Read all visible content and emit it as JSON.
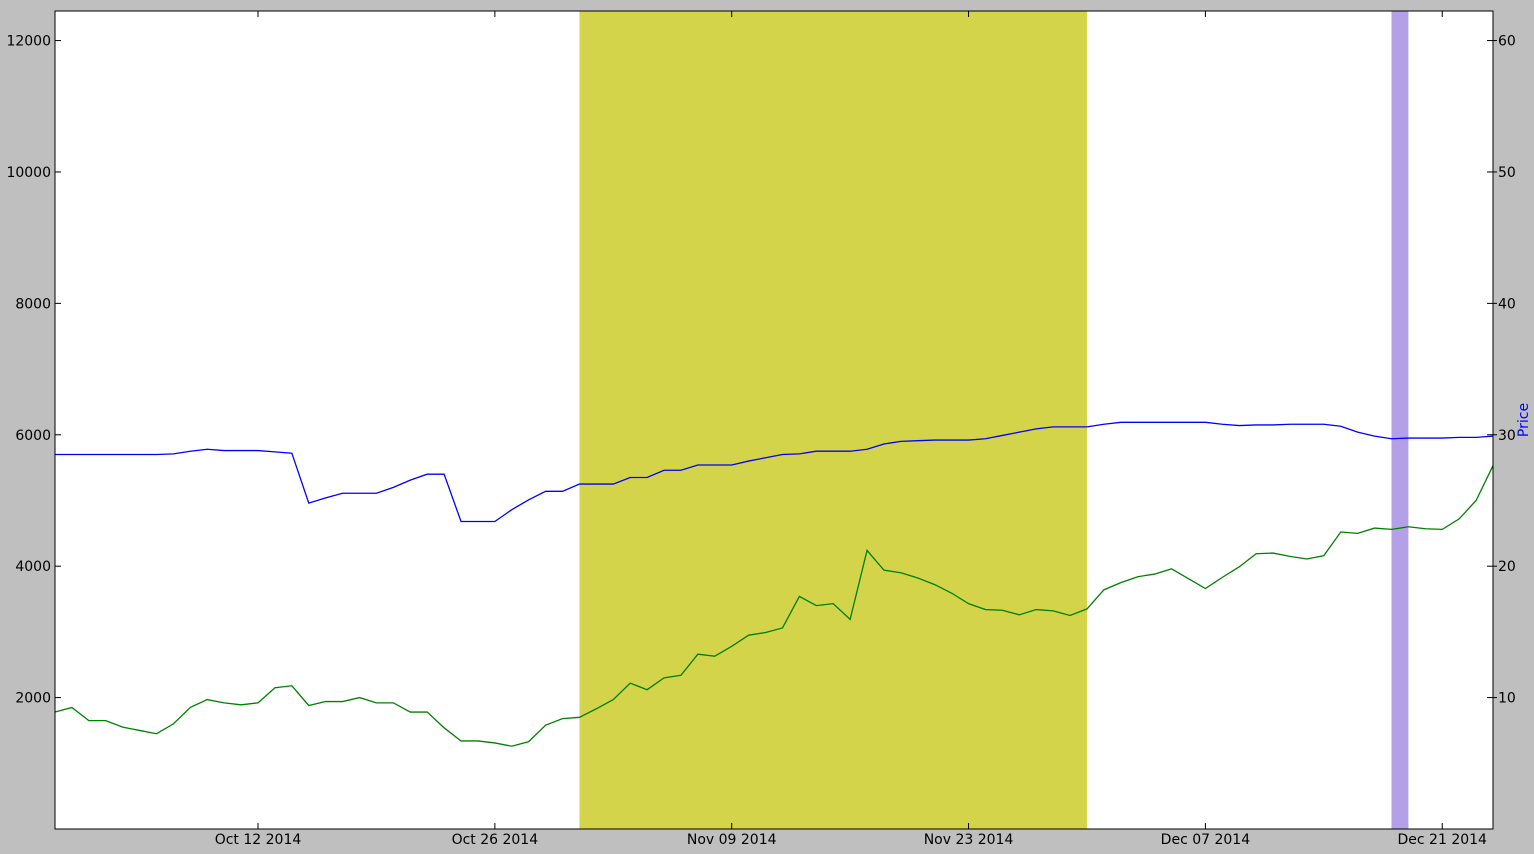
{
  "chart_data": {
    "type": "line",
    "title": "",
    "xlabel": "",
    "x_range": [
      "2014-09-30",
      "2014-12-24"
    ],
    "x_ticks": [
      {
        "date": "2014-10-12",
        "label": "Oct 12 2014"
      },
      {
        "date": "2014-10-26",
        "label": "Oct 26 2014"
      },
      {
        "date": "2014-11-09",
        "label": "Nov 09 2014"
      },
      {
        "date": "2014-11-23",
        "label": "Nov 23 2014"
      },
      {
        "date": "2014-12-07",
        "label": "Dec 07 2014"
      },
      {
        "date": "2014-12-21",
        "label": "Dec 21 2014"
      }
    ],
    "left_axis": {
      "label": "",
      "range": [
        0,
        12450
      ],
      "ticks": [
        2000,
        4000,
        6000,
        8000,
        10000,
        12000
      ]
    },
    "right_axis": {
      "label": "Price",
      "label_color": "#0000ff",
      "range": [
        0,
        62.25
      ],
      "ticks": [
        10,
        20,
        30,
        40,
        50,
        60
      ]
    },
    "shaded_regions": [
      {
        "start": "2014-10-31",
        "end": "2014-11-30",
        "color": "#d4d44a"
      },
      {
        "start": "2014-12-18",
        "end": "2014-12-19",
        "color": "#b4a0e6"
      }
    ],
    "series": [
      {
        "color": "#0000ff",
        "axis": "left",
        "points": [
          [
            "2014-09-30",
            5700
          ],
          [
            "2014-10-01",
            5700
          ],
          [
            "2014-10-02",
            5700
          ],
          [
            "2014-10-03",
            5700
          ],
          [
            "2014-10-04",
            5700
          ],
          [
            "2014-10-05",
            5700
          ],
          [
            "2014-10-06",
            5700
          ],
          [
            "2014-10-07",
            5710
          ],
          [
            "2014-10-08",
            5750
          ],
          [
            "2014-10-09",
            5780
          ],
          [
            "2014-10-10",
            5760
          ],
          [
            "2014-10-11",
            5760
          ],
          [
            "2014-10-12",
            5760
          ],
          [
            "2014-10-13",
            5740
          ],
          [
            "2014-10-14",
            5720
          ],
          [
            "2014-10-15",
            4960
          ],
          [
            "2014-10-16",
            5040
          ],
          [
            "2014-10-17",
            5110
          ],
          [
            "2014-10-18",
            5110
          ],
          [
            "2014-10-19",
            5110
          ],
          [
            "2014-10-20",
            5200
          ],
          [
            "2014-10-21",
            5310
          ],
          [
            "2014-10-22",
            5400
          ],
          [
            "2014-10-23",
            5400
          ],
          [
            "2014-10-24",
            4680
          ],
          [
            "2014-10-25",
            4680
          ],
          [
            "2014-10-26",
            4680
          ],
          [
            "2014-10-27",
            4860
          ],
          [
            "2014-10-28",
            5010
          ],
          [
            "2014-10-29",
            5140
          ],
          [
            "2014-10-30",
            5140
          ],
          [
            "2014-10-31",
            5250
          ],
          [
            "2014-11-01",
            5250
          ],
          [
            "2014-11-02",
            5250
          ],
          [
            "2014-11-03",
            5350
          ],
          [
            "2014-11-04",
            5350
          ],
          [
            "2014-11-05",
            5460
          ],
          [
            "2014-11-06",
            5460
          ],
          [
            "2014-11-07",
            5540
          ],
          [
            "2014-11-08",
            5540
          ],
          [
            "2014-11-09",
            5540
          ],
          [
            "2014-11-10",
            5600
          ],
          [
            "2014-11-11",
            5650
          ],
          [
            "2014-11-12",
            5700
          ],
          [
            "2014-11-13",
            5710
          ],
          [
            "2014-11-14",
            5750
          ],
          [
            "2014-11-15",
            5750
          ],
          [
            "2014-11-16",
            5750
          ],
          [
            "2014-11-17",
            5780
          ],
          [
            "2014-11-18",
            5860
          ],
          [
            "2014-11-19",
            5900
          ],
          [
            "2014-11-20",
            5910
          ],
          [
            "2014-11-21",
            5920
          ],
          [
            "2014-11-22",
            5920
          ],
          [
            "2014-11-23",
            5920
          ],
          [
            "2014-11-24",
            5940
          ],
          [
            "2014-11-25",
            5990
          ],
          [
            "2014-11-26",
            6040
          ],
          [
            "2014-11-27",
            6090
          ],
          [
            "2014-11-28",
            6120
          ],
          [
            "2014-11-29",
            6120
          ],
          [
            "2014-11-30",
            6120
          ],
          [
            "2014-12-01",
            6160
          ],
          [
            "2014-12-02",
            6190
          ],
          [
            "2014-12-03",
            6190
          ],
          [
            "2014-12-04",
            6190
          ],
          [
            "2014-12-05",
            6190
          ],
          [
            "2014-12-06",
            6190
          ],
          [
            "2014-12-07",
            6190
          ],
          [
            "2014-12-08",
            6160
          ],
          [
            "2014-12-09",
            6140
          ],
          [
            "2014-12-10",
            6150
          ],
          [
            "2014-12-11",
            6150
          ],
          [
            "2014-12-12",
            6160
          ],
          [
            "2014-12-13",
            6160
          ],
          [
            "2014-12-14",
            6160
          ],
          [
            "2014-12-15",
            6130
          ],
          [
            "2014-12-16",
            6040
          ],
          [
            "2014-12-17",
            5980
          ],
          [
            "2014-12-18",
            5940
          ],
          [
            "2014-12-19",
            5950
          ],
          [
            "2014-12-20",
            5950
          ],
          [
            "2014-12-21",
            5950
          ],
          [
            "2014-12-22",
            5960
          ],
          [
            "2014-12-23",
            5960
          ],
          [
            "2014-12-24",
            5980
          ]
        ]
      },
      {
        "color": "#008000",
        "axis": "left",
        "points": [
          [
            "2014-09-30",
            1780
          ],
          [
            "2014-10-01",
            1850
          ],
          [
            "2014-10-02",
            1650
          ],
          [
            "2014-10-03",
            1650
          ],
          [
            "2014-10-04",
            1550
          ],
          [
            "2014-10-05",
            1500
          ],
          [
            "2014-10-06",
            1450
          ],
          [
            "2014-10-07",
            1600
          ],
          [
            "2014-10-08",
            1850
          ],
          [
            "2014-10-09",
            1970
          ],
          [
            "2014-10-10",
            1920
          ],
          [
            "2014-10-11",
            1890
          ],
          [
            "2014-10-12",
            1920
          ],
          [
            "2014-10-13",
            2150
          ],
          [
            "2014-10-14",
            2180
          ],
          [
            "2014-10-15",
            1880
          ],
          [
            "2014-10-16",
            1940
          ],
          [
            "2014-10-17",
            1940
          ],
          [
            "2014-10-18",
            2000
          ],
          [
            "2014-10-19",
            1920
          ],
          [
            "2014-10-20",
            1920
          ],
          [
            "2014-10-21",
            1780
          ],
          [
            "2014-10-22",
            1780
          ],
          [
            "2014-10-23",
            1540
          ],
          [
            "2014-10-24",
            1340
          ],
          [
            "2014-10-25",
            1340
          ],
          [
            "2014-10-26",
            1310
          ],
          [
            "2014-10-27",
            1260
          ],
          [
            "2014-10-28",
            1330
          ],
          [
            "2014-10-29",
            1580
          ],
          [
            "2014-10-30",
            1680
          ],
          [
            "2014-10-31",
            1700
          ],
          [
            "2014-11-01",
            1830
          ],
          [
            "2014-11-02",
            1970
          ],
          [
            "2014-11-03",
            2220
          ],
          [
            "2014-11-04",
            2120
          ],
          [
            "2014-11-05",
            2300
          ],
          [
            "2014-11-06",
            2340
          ],
          [
            "2014-11-07",
            2660
          ],
          [
            "2014-11-08",
            2630
          ],
          [
            "2014-11-09",
            2780
          ],
          [
            "2014-11-10",
            2950
          ],
          [
            "2014-11-11",
            2990
          ],
          [
            "2014-11-12",
            3060
          ],
          [
            "2014-11-13",
            3540
          ],
          [
            "2014-11-14",
            3400
          ],
          [
            "2014-11-15",
            3430
          ],
          [
            "2014-11-16",
            3190
          ],
          [
            "2014-11-17",
            4240
          ],
          [
            "2014-11-18",
            3940
          ],
          [
            "2014-11-19",
            3900
          ],
          [
            "2014-11-20",
            3820
          ],
          [
            "2014-11-21",
            3720
          ],
          [
            "2014-11-22",
            3590
          ],
          [
            "2014-11-23",
            3430
          ],
          [
            "2014-11-24",
            3340
          ],
          [
            "2014-11-25",
            3330
          ],
          [
            "2014-11-26",
            3260
          ],
          [
            "2014-11-27",
            3340
          ],
          [
            "2014-11-28",
            3320
          ],
          [
            "2014-11-29",
            3250
          ],
          [
            "2014-11-30",
            3350
          ],
          [
            "2014-12-01",
            3640
          ],
          [
            "2014-12-02",
            3750
          ],
          [
            "2014-12-03",
            3840
          ],
          [
            "2014-12-04",
            3880
          ],
          [
            "2014-12-05",
            3960
          ],
          [
            "2014-12-06",
            3810
          ],
          [
            "2014-12-07",
            3660
          ],
          [
            "2014-12-08",
            3830
          ],
          [
            "2014-12-09",
            3990
          ],
          [
            "2014-12-10",
            4190
          ],
          [
            "2014-12-11",
            4200
          ],
          [
            "2014-12-12",
            4150
          ],
          [
            "2014-12-13",
            4110
          ],
          [
            "2014-12-14",
            4160
          ],
          [
            "2014-12-15",
            4520
          ],
          [
            "2014-12-16",
            4500
          ],
          [
            "2014-12-17",
            4580
          ],
          [
            "2014-12-18",
            4560
          ],
          [
            "2014-12-19",
            4600
          ],
          [
            "2014-12-20",
            4570
          ],
          [
            "2014-12-21",
            4560
          ],
          [
            "2014-12-22",
            4720
          ],
          [
            "2014-12-23",
            5000
          ],
          [
            "2014-12-24",
            5530
          ]
        ]
      }
    ]
  }
}
